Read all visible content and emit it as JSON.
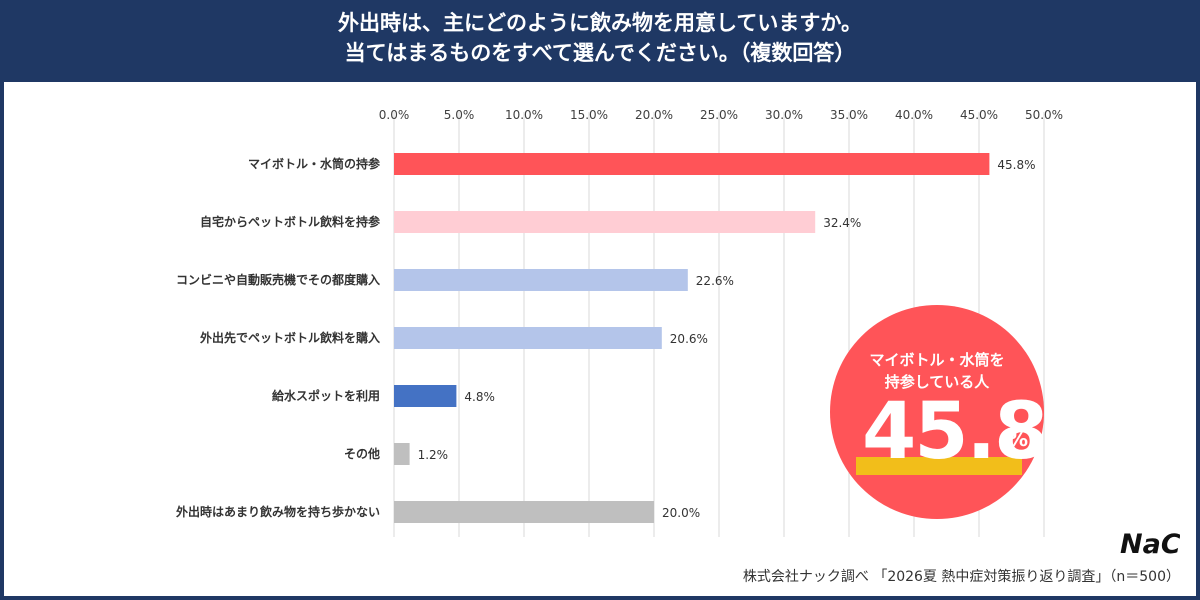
{
  "header": {
    "title_line1": "外出時は、主にどのように飲み物を用意していますか。",
    "title_line2": "当てはまるものをすべて選んでください。（複数回答）"
  },
  "chart_data": {
    "type": "bar",
    "orientation": "horizontal",
    "categories": [
      "マイボトル・水筒の持参",
      "自宅からペットボトル飲料を持参",
      "コンビニや自動販売機でその都度購入",
      "外出先でペットボトル飲料を購入",
      "給水スポットを利用",
      "その他",
      "外出時はあまり飲み物を持ち歩かない"
    ],
    "values": [
      45.8,
      32.4,
      22.6,
      20.6,
      4.8,
      1.2,
      20.0
    ],
    "value_labels": [
      "45.8%",
      "32.4%",
      "22.6%",
      "20.6%",
      "4.8%",
      "1.2%",
      "20.0%"
    ],
    "bar_colors": [
      "#ff5458",
      "#ffcdd4",
      "#b4c5ea",
      "#b4c5ea",
      "#4472c4",
      "#bfbfbf",
      "#bfbfbf"
    ],
    "xlim": [
      0,
      50
    ],
    "xticks": [
      0,
      5,
      10,
      15,
      20,
      25,
      30,
      35,
      40,
      45,
      50
    ],
    "xtick_labels": [
      "0.0%",
      "5.0%",
      "10.0%",
      "15.0%",
      "20.0%",
      "25.0%",
      "30.0%",
      "35.0%",
      "40.0%",
      "45.0%",
      "50.0%"
    ],
    "grid": "vertical"
  },
  "highlight": {
    "line1": "マイボトル・水筒を",
    "line2": "持参している人",
    "value": "45.8",
    "unit": "%"
  },
  "logo": {
    "text": "NaC"
  },
  "source": "株式会社ナック調べ 「2026夏 熱中症対策振り返り調査」（n＝500）",
  "colors": {
    "header_bg": "#1f3864",
    "accent_red": "#ff5458",
    "accent_yellow": "#f2be1a",
    "blue": "#4472c4"
  }
}
